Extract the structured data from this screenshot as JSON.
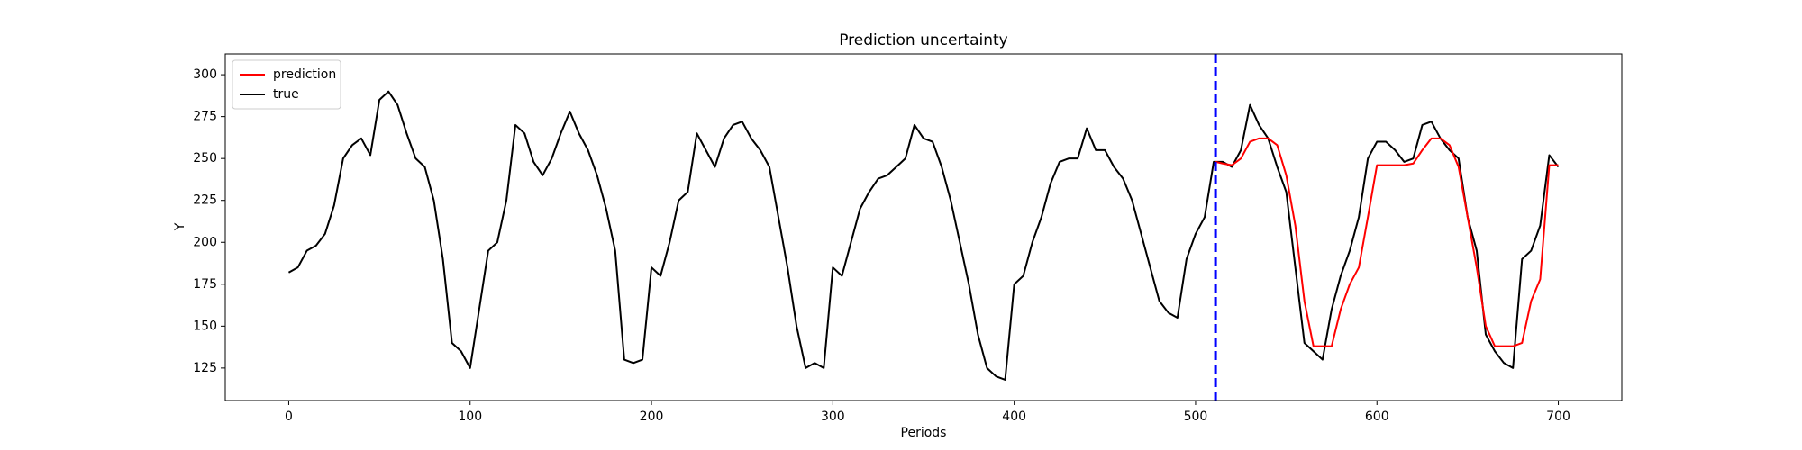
{
  "chart_data": {
    "type": "line",
    "title": "Prediction uncertainty",
    "x_label": "Periods",
    "y_label": "Y",
    "xlim": [
      -35,
      735
    ],
    "xticks": [
      0,
      100,
      200,
      300,
      400,
      500,
      600,
      700
    ],
    "ylim": [
      105.6,
      312.4
    ],
    "yticks": [
      125,
      150,
      175,
      200,
      225,
      250,
      275,
      300
    ],
    "grid": false,
    "legend": "upper left",
    "vline": {
      "x": 511,
      "color": "#0000ff",
      "dashed": true
    },
    "series": [
      {
        "name": "prediction",
        "color": "#ff0000",
        "x": [
          511,
          515,
          520,
          525,
          530,
          535,
          540,
          545,
          550,
          555,
          560,
          565,
          570,
          575,
          580,
          585,
          590,
          595,
          600,
          605,
          610,
          615,
          620,
          625,
          630,
          635,
          640,
          645,
          650,
          655,
          660,
          665,
          670,
          675,
          680,
          685,
          690,
          695,
          700
        ],
        "values": [
          248,
          247,
          246,
          250,
          260,
          262,
          262,
          258,
          240,
          210,
          165,
          138,
          138,
          138,
          160,
          175,
          185,
          215,
          246,
          246,
          246,
          246,
          247,
          255,
          262,
          262,
          258,
          245,
          215,
          185,
          150,
          138,
          138,
          138,
          140,
          165,
          178,
          246,
          246
        ]
      },
      {
        "name": "true",
        "color": "#000000",
        "x": [
          0,
          5,
          10,
          15,
          20,
          25,
          30,
          35,
          40,
          45,
          50,
          55,
          60,
          65,
          70,
          75,
          80,
          85,
          90,
          95,
          100,
          105,
          110,
          115,
          120,
          125,
          130,
          135,
          140,
          145,
          150,
          155,
          160,
          165,
          170,
          175,
          180,
          185,
          190,
          195,
          200,
          205,
          210,
          215,
          220,
          225,
          230,
          235,
          240,
          245,
          250,
          255,
          260,
          265,
          270,
          275,
          280,
          285,
          290,
          295,
          300,
          305,
          310,
          315,
          320,
          325,
          330,
          335,
          340,
          345,
          350,
          355,
          360,
          365,
          370,
          375,
          380,
          385,
          390,
          395,
          400,
          405,
          410,
          415,
          420,
          425,
          430,
          435,
          440,
          445,
          450,
          455,
          460,
          465,
          470,
          475,
          480,
          485,
          490,
          495,
          500,
          505,
          510,
          515,
          520,
          525,
          530,
          535,
          540,
          545,
          550,
          555,
          560,
          565,
          570,
          575,
          580,
          585,
          590,
          595,
          600,
          605,
          610,
          615,
          620,
          625,
          630,
          635,
          640,
          645,
          650,
          655,
          660,
          665,
          670,
          675,
          680,
          685,
          690,
          695,
          700
        ],
        "values": [
          182,
          185,
          195,
          198,
          205,
          222,
          250,
          258,
          262,
          252,
          285,
          290,
          282,
          265,
          250,
          245,
          225,
          190,
          140,
          135,
          125,
          160,
          195,
          200,
          225,
          270,
          265,
          248,
          240,
          250,
          265,
          278,
          265,
          255,
          240,
          220,
          195,
          130,
          128,
          130,
          185,
          180,
          200,
          225,
          230,
          265,
          255,
          245,
          262,
          270,
          272,
          262,
          255,
          245,
          215,
          185,
          150,
          125,
          128,
          125,
          185,
          180,
          200,
          220,
          230,
          238,
          240,
          245,
          250,
          270,
          262,
          260,
          245,
          225,
          200,
          175,
          145,
          125,
          120,
          118,
          175,
          180,
          200,
          215,
          235,
          248,
          250,
          250,
          268,
          255,
          255,
          245,
          238,
          225,
          205,
          185,
          165,
          158,
          155,
          190,
          205,
          215,
          248,
          248,
          245,
          255,
          282,
          270,
          262,
          245,
          230,
          185,
          140,
          135,
          130,
          160,
          180,
          195,
          215,
          250,
          260,
          260,
          255,
          248,
          250,
          270,
          272,
          262,
          255,
          250,
          215,
          195,
          145,
          135,
          128,
          125,
          190,
          195,
          210,
          252,
          245
        ]
      }
    ]
  }
}
